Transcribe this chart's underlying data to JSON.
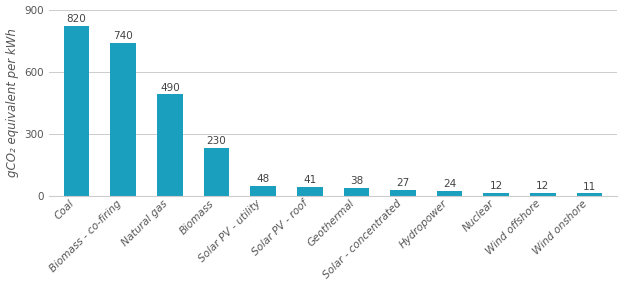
{
  "categories": [
    "Coal",
    "Biomass - co-firing",
    "Natural gas",
    "Biomass",
    "Solar PV - utility",
    "Solar PV - roof",
    "Geothermal",
    "Solar - concentrated",
    "Hydropower",
    "Nuclear",
    "Wind offshore",
    "Wind onshore"
  ],
  "values": [
    820,
    740,
    490,
    230,
    48,
    41,
    38,
    27,
    24,
    12,
    12,
    11
  ],
  "bar_color": "#1a9fbe",
  "ylabel": "gCO₂ equivalent per kWh",
  "ylim": [
    0,
    900
  ],
  "yticks": [
    0,
    300,
    600,
    900
  ],
  "background_color": "#ffffff",
  "grid_color": "#cccccc",
  "tick_label_fontsize": 7.5,
  "value_fontsize": 7.5,
  "ylabel_fontsize": 8.5,
  "bar_width": 0.55
}
